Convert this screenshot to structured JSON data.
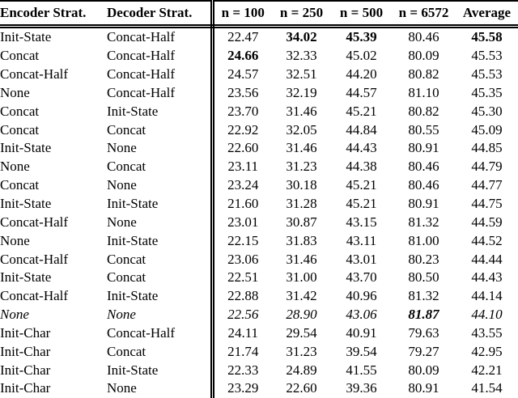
{
  "table": {
    "headers": {
      "encoder": "Encoder Strat.",
      "decoder": "Decoder Strat.",
      "n100": "n = 100",
      "n250": "n = 250",
      "n500": "n = 500",
      "n6572": "n = 6572",
      "average": "Average"
    },
    "rows": [
      {
        "encoder": "Init-State",
        "decoder": "Concat-Half",
        "values": [
          "22.47",
          "34.02",
          "45.39",
          "80.46",
          "45.58"
        ],
        "bold": [
          false,
          true,
          true,
          false,
          true
        ],
        "italic": false
      },
      {
        "encoder": "Concat",
        "decoder": "Concat-Half",
        "values": [
          "24.66",
          "32.33",
          "45.02",
          "80.09",
          "45.53"
        ],
        "bold": [
          true,
          false,
          false,
          false,
          false
        ],
        "italic": false
      },
      {
        "encoder": "Concat-Half",
        "decoder": "Concat-Half",
        "values": [
          "24.57",
          "32.51",
          "44.20",
          "80.82",
          "45.53"
        ],
        "bold": [
          false,
          false,
          false,
          false,
          false
        ],
        "italic": false
      },
      {
        "encoder": "None",
        "decoder": "Concat-Half",
        "values": [
          "23.56",
          "32.19",
          "44.57",
          "81.10",
          "45.35"
        ],
        "bold": [
          false,
          false,
          false,
          false,
          false
        ],
        "italic": false
      },
      {
        "encoder": "Concat",
        "decoder": "Init-State",
        "values": [
          "23.70",
          "31.46",
          "45.21",
          "80.82",
          "45.30"
        ],
        "bold": [
          false,
          false,
          false,
          false,
          false
        ],
        "italic": false
      },
      {
        "encoder": "Concat",
        "decoder": "Concat",
        "values": [
          "22.92",
          "32.05",
          "44.84",
          "80.55",
          "45.09"
        ],
        "bold": [
          false,
          false,
          false,
          false,
          false
        ],
        "italic": false
      },
      {
        "encoder": "Init-State",
        "decoder": "None",
        "values": [
          "22.60",
          "31.46",
          "44.43",
          "80.91",
          "44.85"
        ],
        "bold": [
          false,
          false,
          false,
          false,
          false
        ],
        "italic": false
      },
      {
        "encoder": "None",
        "decoder": "Concat",
        "values": [
          "23.11",
          "31.23",
          "44.38",
          "80.46",
          "44.79"
        ],
        "bold": [
          false,
          false,
          false,
          false,
          false
        ],
        "italic": false
      },
      {
        "encoder": "Concat",
        "decoder": "None",
        "values": [
          "23.24",
          "30.18",
          "45.21",
          "80.46",
          "44.77"
        ],
        "bold": [
          false,
          false,
          false,
          false,
          false
        ],
        "italic": false
      },
      {
        "encoder": "Init-State",
        "decoder": "Init-State",
        "values": [
          "21.60",
          "31.28",
          "45.21",
          "80.91",
          "44.75"
        ],
        "bold": [
          false,
          false,
          false,
          false,
          false
        ],
        "italic": false
      },
      {
        "encoder": "Concat-Half",
        "decoder": "None",
        "values": [
          "23.01",
          "30.87",
          "43.15",
          "81.32",
          "44.59"
        ],
        "bold": [
          false,
          false,
          false,
          false,
          false
        ],
        "italic": false
      },
      {
        "encoder": "None",
        "decoder": "Init-State",
        "values": [
          "22.15",
          "31.83",
          "43.11",
          "81.00",
          "44.52"
        ],
        "bold": [
          false,
          false,
          false,
          false,
          false
        ],
        "italic": false
      },
      {
        "encoder": "Concat-Half",
        "decoder": "Concat",
        "values": [
          "23.06",
          "31.46",
          "43.01",
          "80.23",
          "44.44"
        ],
        "bold": [
          false,
          false,
          false,
          false,
          false
        ],
        "italic": false
      },
      {
        "encoder": "Init-State",
        "decoder": "Concat",
        "values": [
          "22.51",
          "31.00",
          "43.70",
          "80.50",
          "44.43"
        ],
        "bold": [
          false,
          false,
          false,
          false,
          false
        ],
        "italic": false
      },
      {
        "encoder": "Concat-Half",
        "decoder": "Init-State",
        "values": [
          "22.88",
          "31.42",
          "40.96",
          "81.32",
          "44.14"
        ],
        "bold": [
          false,
          false,
          false,
          false,
          false
        ],
        "italic": false
      },
      {
        "encoder": "None",
        "decoder": "None",
        "values": [
          "22.56",
          "28.90",
          "43.06",
          "81.87",
          "44.10"
        ],
        "bold": [
          false,
          false,
          false,
          true,
          false
        ],
        "italic": true
      },
      {
        "encoder": "Init-Char",
        "decoder": "Concat-Half",
        "values": [
          "24.11",
          "29.54",
          "40.91",
          "79.63",
          "43.55"
        ],
        "bold": [
          false,
          false,
          false,
          false,
          false
        ],
        "italic": false
      },
      {
        "encoder": "Init-Char",
        "decoder": "Concat",
        "values": [
          "21.74",
          "31.23",
          "39.54",
          "79.27",
          "42.95"
        ],
        "bold": [
          false,
          false,
          false,
          false,
          false
        ],
        "italic": false
      },
      {
        "encoder": "Init-Char",
        "decoder": "Init-State",
        "values": [
          "22.33",
          "24.89",
          "41.55",
          "80.09",
          "42.21"
        ],
        "bold": [
          false,
          false,
          false,
          false,
          false
        ],
        "italic": false
      },
      {
        "encoder": "Init-Char",
        "decoder": "None",
        "values": [
          "23.29",
          "22.60",
          "39.36",
          "80.91",
          "41.54"
        ],
        "bold": [
          false,
          false,
          false,
          false,
          false
        ],
        "italic": false
      }
    ]
  },
  "colors": {
    "text": "#000000",
    "background": "#ffffff",
    "rule": "#000000"
  }
}
